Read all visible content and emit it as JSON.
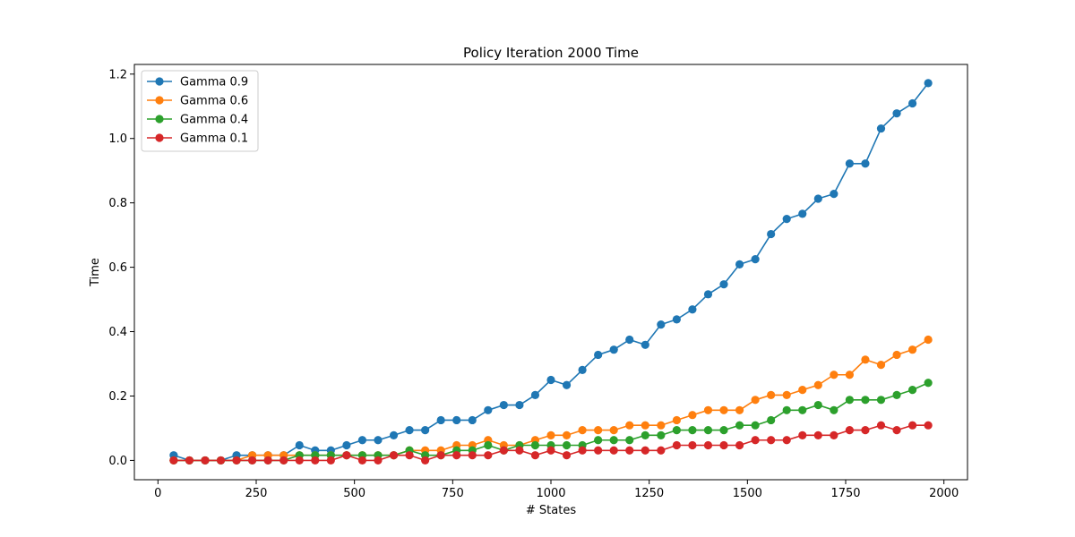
{
  "chart_data": {
    "type": "line",
    "title": "Policy Iteration 2000  Time",
    "xlabel": "# States",
    "ylabel": "Time",
    "xlim": [
      -60,
      2060
    ],
    "ylim": [
      -0.06,
      1.23
    ],
    "xticks": [
      0,
      250,
      500,
      750,
      1000,
      1250,
      1500,
      1750,
      2000
    ],
    "yticks": [
      0.0,
      0.2,
      0.4,
      0.6,
      0.8,
      1.0,
      1.2
    ],
    "grid": false,
    "legend_position": "top-left",
    "x": [
      40,
      80,
      120,
      160,
      200,
      240,
      280,
      320,
      360,
      400,
      440,
      480,
      520,
      560,
      600,
      640,
      680,
      720,
      760,
      800,
      840,
      880,
      920,
      960,
      1000,
      1040,
      1080,
      1120,
      1160,
      1200,
      1240,
      1280,
      1320,
      1360,
      1400,
      1440,
      1480,
      1520,
      1560,
      1600,
      1640,
      1680,
      1720,
      1760,
      1800,
      1840,
      1880,
      1920,
      1960
    ],
    "series": [
      {
        "name": "Gamma 0.9",
        "color": "#1f77b4",
        "values": [
          0.016,
          0.0,
          0.0,
          0.0,
          0.016,
          0.016,
          0.016,
          0.016,
          0.047,
          0.031,
          0.031,
          0.047,
          0.063,
          0.063,
          0.078,
          0.094,
          0.094,
          0.125,
          0.125,
          0.125,
          0.156,
          0.172,
          0.172,
          0.203,
          0.25,
          0.234,
          0.281,
          0.328,
          0.344,
          0.375,
          0.359,
          0.422,
          0.438,
          0.469,
          0.516,
          0.547,
          0.609,
          0.625,
          0.703,
          0.75,
          0.766,
          0.813,
          0.828,
          0.922,
          0.922,
          1.031,
          1.078,
          1.109,
          1.172
        ]
      },
      {
        "name": "Gamma 0.6",
        "color": "#ff7f0e",
        "values": [
          0.0,
          0.0,
          0.0,
          0.0,
          0.0,
          0.016,
          0.016,
          0.016,
          0.016,
          0.016,
          0.016,
          0.016,
          0.016,
          0.016,
          0.016,
          0.031,
          0.031,
          0.031,
          0.047,
          0.047,
          0.063,
          0.047,
          0.047,
          0.063,
          0.078,
          0.078,
          0.094,
          0.094,
          0.094,
          0.109,
          0.109,
          0.109,
          0.125,
          0.141,
          0.156,
          0.156,
          0.156,
          0.188,
          0.203,
          0.203,
          0.219,
          0.234,
          0.266,
          0.266,
          0.313,
          0.297,
          0.328,
          0.344,
          0.375
        ]
      },
      {
        "name": "Gamma 0.4",
        "color": "#2ca02c",
        "values": [
          0.0,
          0.0,
          0.0,
          0.0,
          0.0,
          0.0,
          0.0,
          0.0,
          0.016,
          0.016,
          0.016,
          0.016,
          0.016,
          0.016,
          0.016,
          0.031,
          0.016,
          0.016,
          0.031,
          0.031,
          0.047,
          0.031,
          0.047,
          0.047,
          0.047,
          0.047,
          0.047,
          0.063,
          0.063,
          0.063,
          0.078,
          0.078,
          0.094,
          0.094,
          0.094,
          0.094,
          0.109,
          0.109,
          0.125,
          0.156,
          0.156,
          0.172,
          0.156,
          0.188,
          0.188,
          0.188,
          0.203,
          0.219,
          0.241
        ]
      },
      {
        "name": "Gamma 0.1",
        "color": "#d62728",
        "values": [
          0.0,
          0.0,
          0.0,
          0.0,
          0.0,
          0.0,
          0.0,
          0.0,
          0.0,
          0.0,
          0.0,
          0.016,
          0.0,
          0.0,
          0.016,
          0.016,
          0.0,
          0.016,
          0.016,
          0.016,
          0.016,
          0.031,
          0.031,
          0.016,
          0.031,
          0.016,
          0.031,
          0.031,
          0.031,
          0.031,
          0.031,
          0.031,
          0.047,
          0.047,
          0.047,
          0.047,
          0.047,
          0.063,
          0.063,
          0.063,
          0.078,
          0.078,
          0.078,
          0.094,
          0.094,
          0.109,
          0.094,
          0.109,
          0.109
        ]
      }
    ]
  }
}
